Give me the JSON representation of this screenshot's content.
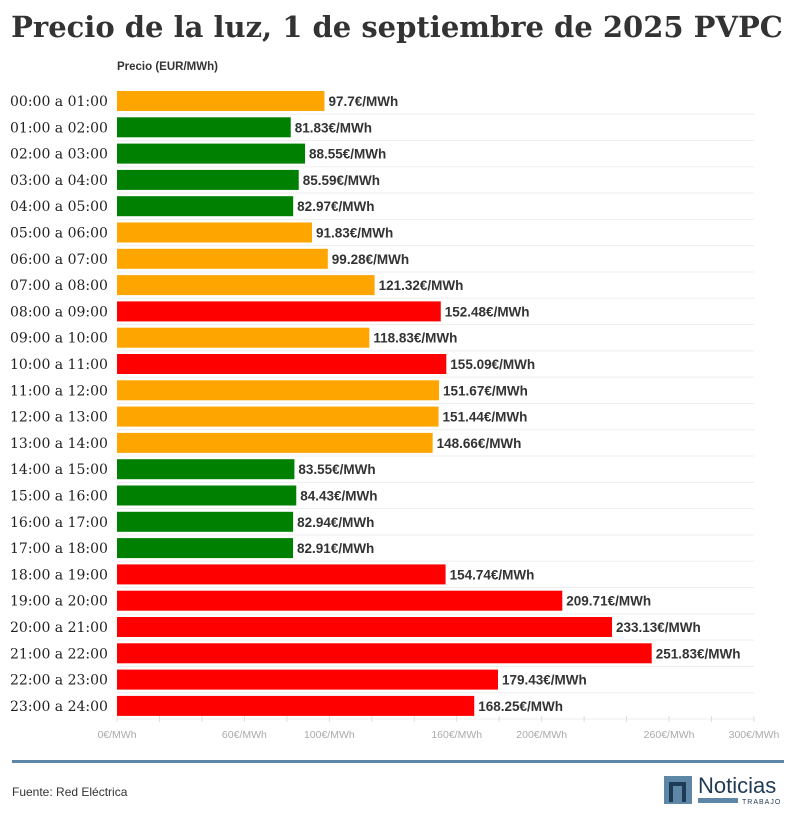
{
  "chart_data": {
    "type": "bar",
    "orientation": "horizontal",
    "title": "Precio de la luz, 1 de septiembre de 2025 PVPC",
    "ylabel": "Precio (EUR/MWh)",
    "categories": [
      "00:00 a 01:00",
      "01:00 a 02:00",
      "02:00 a 03:00",
      "03:00 a 04:00",
      "04:00 a 05:00",
      "05:00 a 06:00",
      "06:00 a 07:00",
      "07:00 a 08:00",
      "08:00 a 09:00",
      "09:00 a 10:00",
      "10:00 a 11:00",
      "11:00 a 12:00",
      "12:00 a 13:00",
      "13:00 a 14:00",
      "14:00 a 15:00",
      "15:00 a 16:00",
      "16:00 a 17:00",
      "17:00 a 18:00",
      "18:00 a 19:00",
      "19:00 a 20:00",
      "20:00 a 21:00",
      "21:00 a 22:00",
      "22:00 a 23:00",
      "23:00 a 24:00"
    ],
    "values": [
      97.7,
      81.83,
      88.55,
      85.59,
      82.97,
      91.83,
      99.28,
      121.32,
      152.48,
      118.83,
      155.09,
      151.67,
      151.44,
      148.66,
      83.55,
      84.43,
      82.94,
      82.91,
      154.74,
      209.71,
      233.13,
      251.83,
      179.43,
      168.25
    ],
    "data_labels": [
      "97.7€/MWh",
      "81.83€/MWh",
      "88.55€/MWh",
      "85.59€/MWh",
      "82.97€/MWh",
      "91.83€/MWh",
      "99.28€/MWh",
      "121.32€/MWh",
      "152.48€/MWh",
      "118.83€/MWh",
      "155.09€/MWh",
      "151.67€/MWh",
      "151.44€/MWh",
      "148.66€/MWh",
      "83.55€/MWh",
      "84.43€/MWh",
      "82.94€/MWh",
      "82.91€/MWh",
      "154.74€/MWh",
      "209.71€/MWh",
      "233.13€/MWh",
      "251.83€/MWh",
      "179.43€/MWh",
      "168.25€/MWh"
    ],
    "bar_colors": [
      "orange",
      "green",
      "green",
      "green",
      "green",
      "orange",
      "orange",
      "orange",
      "red",
      "orange",
      "red",
      "orange",
      "orange",
      "orange",
      "green",
      "green",
      "green",
      "green",
      "red",
      "red",
      "red",
      "red",
      "red",
      "red"
    ],
    "colors": {
      "orange": "#FFA500",
      "green": "#008000",
      "red": "#FF0000"
    },
    "xlim": [
      0,
      300
    ],
    "x_ticks": [
      {
        "value": 0,
        "label": "0€/MWh"
      },
      {
        "value": 60,
        "label": "60€/MWh"
      },
      {
        "value": 100,
        "label": "100€/MWh"
      },
      {
        "value": 160,
        "label": "160€/MWh"
      },
      {
        "value": 200,
        "label": "200€/MWh"
      },
      {
        "value": 260,
        "label": "260€/MWh"
      },
      {
        "value": 300,
        "label": "300€/MWh"
      }
    ],
    "grid": true
  },
  "footer": {
    "source": "Fuente: Red Eléctrica",
    "logo_text": "Noticias",
    "logo_subtext": "TRABAJO"
  }
}
